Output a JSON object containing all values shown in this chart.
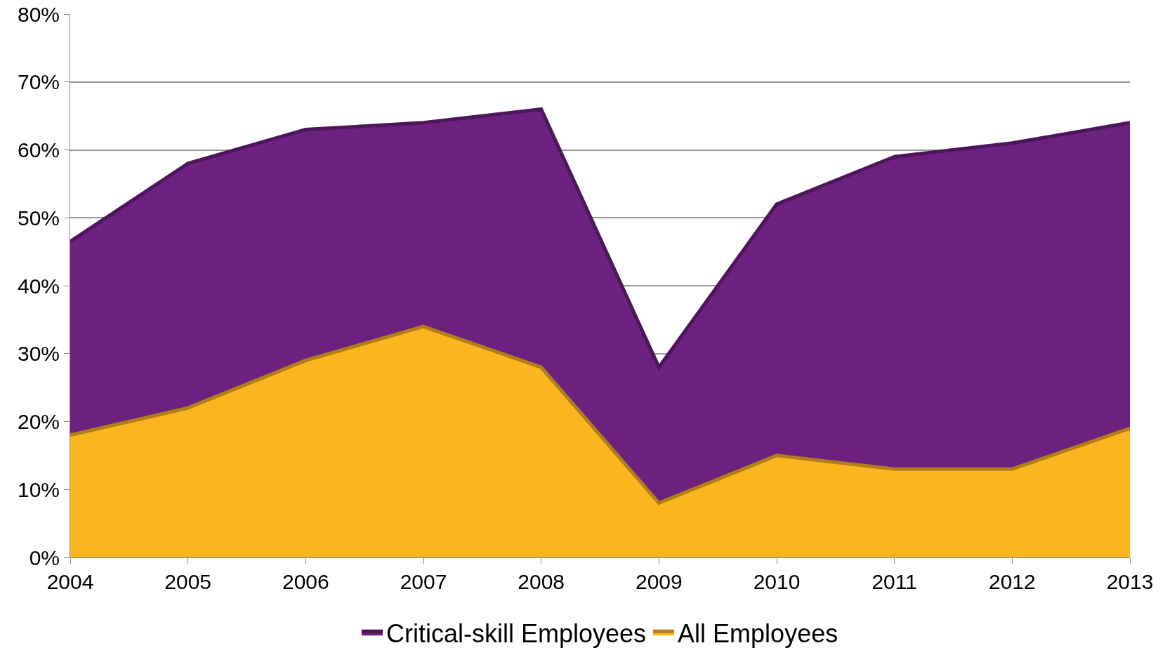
{
  "chart_data": {
    "type": "area",
    "x": [
      2004,
      2005,
      2006,
      2007,
      2008,
      2009,
      2010,
      2011,
      2012,
      2013
    ],
    "series": [
      {
        "name": "Critical-skill Employees",
        "color": "#6c2080",
        "values": [
          46.5,
          58,
          63,
          64,
          66,
          28,
          52,
          59,
          61,
          64
        ]
      },
      {
        "name": "All Employees",
        "color": "#fbb51f",
        "values": [
          18,
          22,
          29,
          34,
          28,
          8,
          15,
          13,
          13,
          19
        ]
      }
    ],
    "xlim": [
      2004,
      2013
    ],
    "xticks": [
      2004,
      2005,
      2006,
      2007,
      2008,
      2009,
      2010,
      2011,
      2012,
      2013
    ],
    "ylim": [
      0,
      80
    ],
    "yticks": [
      {
        "value": 0,
        "label": "0%"
      },
      {
        "value": 10,
        "label": "10%"
      },
      {
        "value": 20,
        "label": "20%"
      },
      {
        "value": 30,
        "label": "30%"
      },
      {
        "value": 40,
        "label": "40%"
      },
      {
        "value": 50,
        "label": "50%"
      },
      {
        "value": 60,
        "label": "60%"
      },
      {
        "value": 70,
        "label": "70%"
      },
      {
        "value": 80,
        "label": "80%"
      }
    ],
    "grid": "y",
    "legend": "bottom"
  }
}
